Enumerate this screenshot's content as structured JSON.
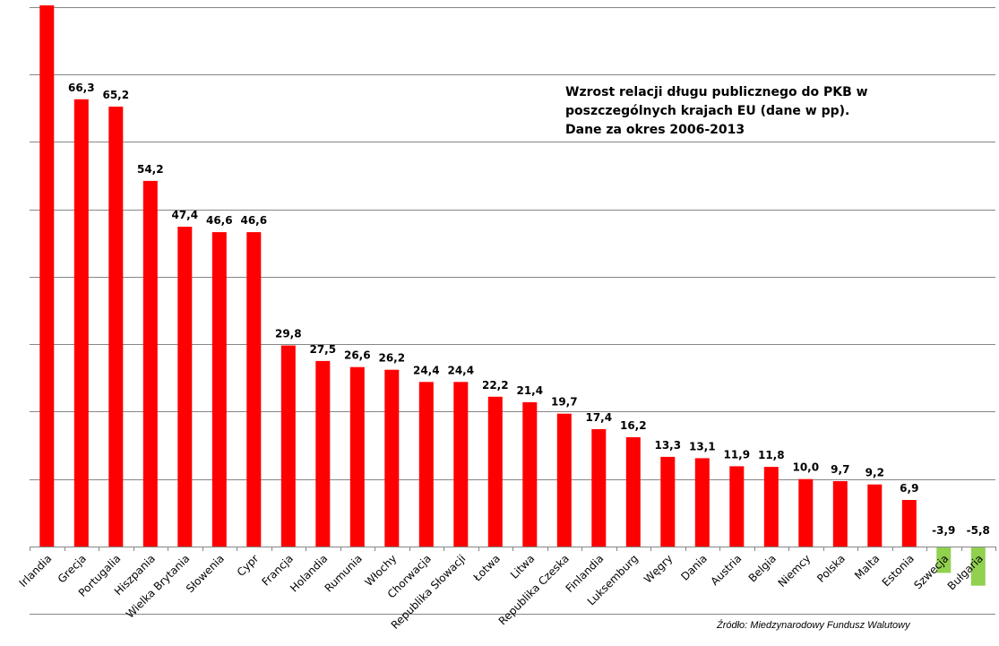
{
  "chart_data": {
    "type": "bar",
    "title_lines": [
      "Wzrost relacji długu publicznego do PKB w",
      "poszczególnych krajach EU (dane w pp).",
      "Dane za okres 2006-2013"
    ],
    "source": "Źródło: Miedzynarodowy  Fundusz Walutowy",
    "categories": [
      "Irlandia",
      "Grecja",
      "Portugalia",
      "Hiszpania",
      "Wielka Brytania",
      "Słowenia",
      "Cypr",
      "Francja",
      "Holandia",
      "Rumunia",
      "Włochy",
      "Chorwacja",
      "Republika Słowacji",
      "Łotwa",
      "Litwa",
      "Republika Czeska",
      "Finlandia",
      "Luksemburg",
      "Węgry",
      "Dania",
      "Austria",
      "Belgia",
      "Niemcy",
      "Polska",
      "Malta",
      "Estonia",
      "Szwecja",
      "Bułgaria"
    ],
    "values": [
      81,
      66.3,
      65.2,
      54.2,
      47.4,
      46.6,
      46.6,
      29.8,
      27.5,
      26.6,
      26.2,
      24.4,
      24.4,
      22.2,
      21.4,
      19.7,
      17.4,
      16.2,
      13.3,
      13.1,
      11.9,
      11.8,
      10.0,
      9.7,
      9.2,
      6.9,
      -3.9,
      -5.8
    ],
    "value_labels": [
      "",
      "66,3",
      "65,2",
      "54,2",
      "47,4",
      "46,6",
      "46,6",
      "29,8",
      "27,5",
      "26,6",
      "26,2",
      "24,4",
      "24,4",
      "22,2",
      "21,4",
      "19,7",
      "17,4",
      "16,2",
      "13,3",
      "13,1",
      "11,9",
      "11,8",
      "10,0",
      "9,7",
      "9,2",
      "6,9",
      "-3,9",
      "-5,8"
    ],
    "ylim": [
      -10,
      80
    ],
    "gridline_step": 10,
    "grid": true,
    "colors": {
      "positive": "#ff0000",
      "negative": "#92d050",
      "grid": "#868686",
      "axis": "#868686"
    }
  }
}
